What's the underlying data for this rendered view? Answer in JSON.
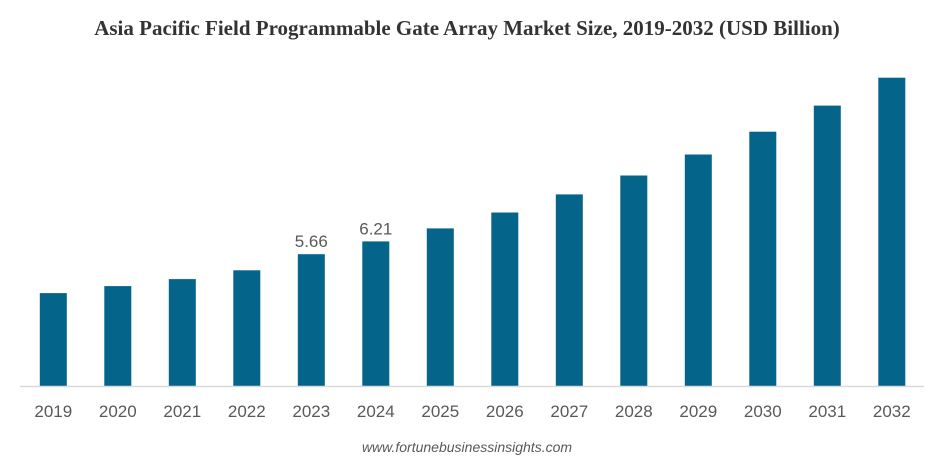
{
  "chart_data": {
    "type": "bar",
    "title": "Asia Pacific Field Programmable Gate Array Market Size, 2019-2032 (USD Billion)",
    "xlabel": "",
    "ylabel": "",
    "categories": [
      "2019",
      "2020",
      "2021",
      "2022",
      "2023",
      "2024",
      "2025",
      "2026",
      "2027",
      "2028",
      "2029",
      "2030",
      "2031",
      "2032"
    ],
    "values": [
      3.99,
      4.29,
      4.59,
      4.97,
      5.66,
      6.21,
      6.77,
      7.45,
      8.23,
      9.04,
      9.94,
      10.92,
      12.04,
      13.24
    ],
    "data_labels": [
      null,
      null,
      null,
      null,
      "5.66",
      "6.21",
      null,
      null,
      null,
      null,
      null,
      null,
      null,
      null
    ],
    "ylim": [
      0,
      14
    ],
    "grid": false,
    "legend": "none",
    "bar_color": "#05648A",
    "source": "www.fortunebusinessinsights.com"
  }
}
